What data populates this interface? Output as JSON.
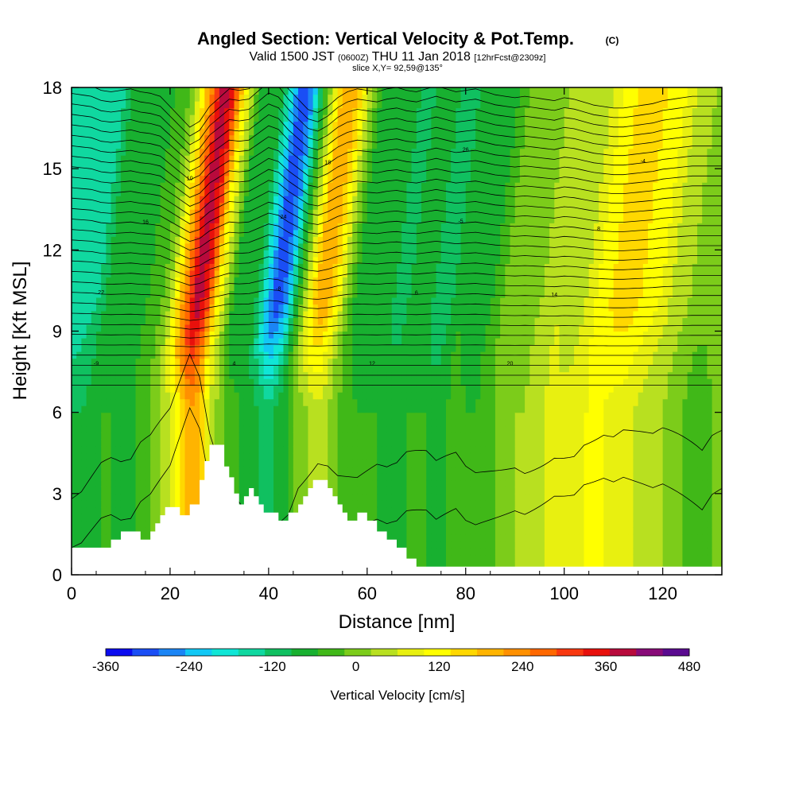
{
  "chart_data": {
    "type": "heatmap",
    "title": "Angled Section: Vertical Velocity & Pot.Temp.",
    "title_mark": "(C)",
    "subtitle": {
      "valid_prefix": "Valid 1500 JST",
      "utc": "(0600Z)",
      "date": "THU 11 Jan 2018",
      "forecast": "[12hrFcst@2309z]"
    },
    "slice_label": "slice X,Y= 92,59@135°",
    "xlabel": "Distance [nm]",
    "ylabel": "Height [Kft MSL]",
    "xlim": [
      0,
      132
    ],
    "ylim": [
      0,
      18
    ],
    "x_ticks": [
      "0",
      "20",
      "40",
      "60",
      "80",
      "100",
      "120"
    ],
    "y_ticks": [
      "0",
      "3",
      "6",
      "9",
      "12",
      "15",
      "18"
    ],
    "colorbar": {
      "label": "Vertical Velocity [cm/s]",
      "range": [
        -360,
        480
      ],
      "step": 40,
      "tick_labels": [
        "-360",
        "-240",
        "-120",
        "0",
        "120",
        "240",
        "360",
        "480"
      ],
      "colors": [
        "#0b0bf0",
        "#1a4ef5",
        "#1b85f5",
        "#12c8f5",
        "#10e6d6",
        "#10d8a0",
        "#10c060",
        "#18b030",
        "#40b818",
        "#7ccc1a",
        "#b8e020",
        "#e8f010",
        "#ffff00",
        "#ffd800",
        "#ffb400",
        "#ff9000",
        "#ff6800",
        "#f83810",
        "#e8100c",
        "#b80a3c",
        "#880a78",
        "#5a0a90"
      ]
    },
    "velocity_columns": {
      "x": [
        0,
        2,
        4,
        6,
        8,
        10,
        12,
        14,
        16,
        18,
        20,
        22,
        24,
        26,
        28,
        30,
        32,
        34,
        36,
        38,
        40,
        42,
        44,
        46,
        48,
        50,
        52,
        54,
        56,
        58,
        60,
        62,
        64,
        66,
        68,
        70,
        72,
        74,
        76,
        78,
        80,
        82,
        84,
        86,
        88,
        90,
        92,
        94,
        96,
        98,
        100,
        102,
        104,
        106,
        108,
        110,
        112,
        114,
        116,
        118,
        120,
        122,
        124,
        126,
        128,
        130,
        132
      ],
      "upper_vv": [
        -160,
        -140,
        -120,
        -60,
        -40,
        -60,
        -80,
        -40,
        -20,
        20,
        160,
        300,
        440,
        360,
        160,
        40,
        -80,
        -60,
        -80,
        -200,
        -320,
        -260,
        -80,
        60,
        200,
        240,
        160,
        40,
        -40,
        -80,
        -60,
        -40,
        -80,
        -100,
        -60,
        -40,
        -80,
        -120,
        -80,
        -40,
        -60,
        -80,
        -40,
        0,
        20,
        40,
        20,
        40,
        60,
        80,
        40,
        60,
        100,
        140,
        160,
        180,
        180,
        160,
        140,
        120,
        80,
        60,
        40,
        20,
        20,
        20,
        20
      ],
      "lower_vv": [
        -80,
        -80,
        -60,
        -40,
        -40,
        -60,
        -60,
        -20,
        0,
        40,
        80,
        160,
        240,
        200,
        80,
        20,
        -20,
        -40,
        -60,
        -80,
        -100,
        -60,
        -40,
        20,
        40,
        60,
        40,
        0,
        -20,
        -40,
        -40,
        -40,
        -60,
        -60,
        -40,
        -40,
        -40,
        -60,
        -40,
        -20,
        -40,
        -40,
        -20,
        0,
        20,
        40,
        40,
        60,
        80,
        100,
        100,
        100,
        120,
        120,
        120,
        100,
        100,
        80,
        60,
        40,
        40,
        20,
        0,
        -20,
        -40,
        0,
        20
      ]
    },
    "potential_temperature": {
      "unit": "C",
      "isentrope_count": 30,
      "labels": [
        "-9",
        "-8",
        "-5",
        "-4",
        "4",
        "6",
        "8",
        "10",
        "12",
        "14",
        "16",
        "18",
        "20",
        "22",
        "24",
        "26"
      ]
    },
    "terrain_kft": {
      "x": [
        0,
        4,
        8,
        10,
        12,
        14,
        16,
        17,
        18,
        19,
        20,
        22,
        24,
        26,
        27,
        28,
        29,
        30,
        31,
        32,
        33,
        34,
        35,
        36,
        37,
        38,
        39,
        40,
        41,
        42,
        44,
        46,
        47,
        48,
        49,
        50,
        51,
        52,
        53,
        54,
        55,
        56,
        58,
        60,
        62,
        64,
        66,
        68,
        70,
        72,
        74,
        132
      ],
      "h": [
        1,
        1,
        1.3,
        1.6,
        1.6,
        1.3,
        1.6,
        1.9,
        2.2,
        2.5,
        2.5,
        2.2,
        2.6,
        3.5,
        4.2,
        4.8,
        4.8,
        4.8,
        4.0,
        3.6,
        3.0,
        2.6,
        2.9,
        3.2,
        2.9,
        2.6,
        2.3,
        2.3,
        2.3,
        2.0,
        2.3,
        2.6,
        2.9,
        3.2,
        3.5,
        3.5,
        3.5,
        3.2,
        2.9,
        2.6,
        2.3,
        2.0,
        2.3,
        2.0,
        1.6,
        1.3,
        1.0,
        0.6,
        0.3,
        0.3,
        0.3,
        0.3
      ]
    }
  }
}
